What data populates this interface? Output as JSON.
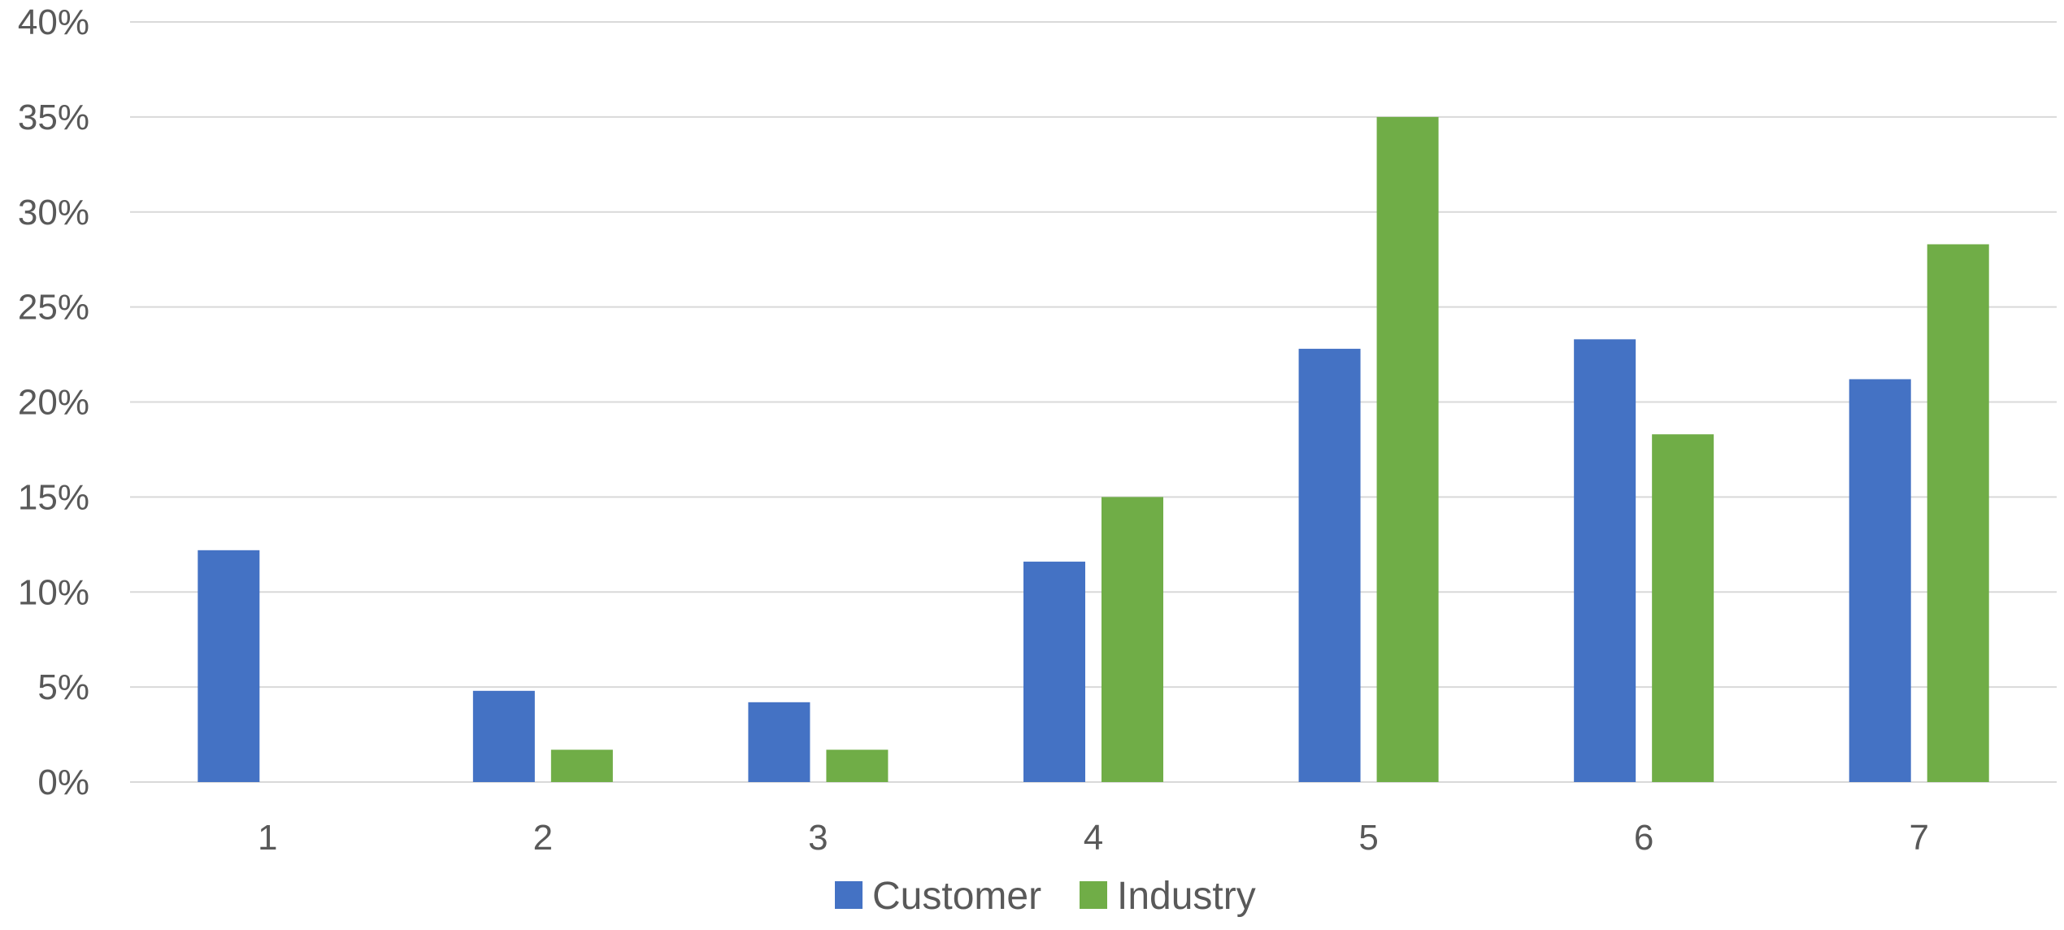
{
  "chart_data": {
    "type": "bar",
    "categories": [
      "1",
      "2",
      "3",
      "4",
      "5",
      "6",
      "7"
    ],
    "series": [
      {
        "name": "Customer",
        "color": "#4472c4",
        "values": [
          12.2,
          4.8,
          4.2,
          11.6,
          22.8,
          23.3,
          21.2
        ]
      },
      {
        "name": "Industry",
        "color": "#70ad47",
        "values": [
          0,
          1.7,
          1.7,
          15.0,
          35.0,
          18.3,
          28.3
        ]
      }
    ],
    "ylim": [
      0,
      40
    ],
    "yticks": [
      "0%",
      "5%",
      "10%",
      "15%",
      "20%",
      "25%",
      "30%",
      "35%",
      "40%"
    ],
    "y_unit": "percent",
    "grid": true,
    "legend": "bottom-center"
  }
}
